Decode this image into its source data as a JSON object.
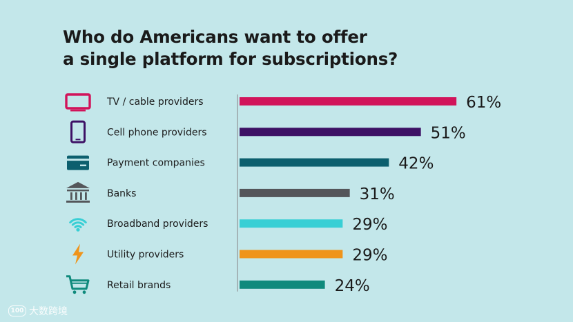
{
  "title": {
    "line1": "Who do Americans want to offer",
    "line2": "a single platform for subscriptions?"
  },
  "watermark": {
    "logo": "100",
    "text": "大数跨境"
  },
  "chart_data": {
    "type": "bar",
    "orientation": "horizontal",
    "title": "Who do Americans want to offer a single platform for subscriptions?",
    "categories": [
      "TV / cable providers",
      "Cell phone providers",
      "Payment companies",
      "Banks",
      "Broadband providers",
      "Utility providers",
      "Retail brands"
    ],
    "values": [
      61,
      51,
      42,
      31,
      29,
      29,
      24
    ],
    "value_labels": [
      "61%",
      "51%",
      "42%",
      "31%",
      "29%",
      "29%",
      "24%"
    ],
    "unit": "%",
    "icons": [
      "tv-icon",
      "cell-phone-icon",
      "credit-card-icon",
      "bank-icon",
      "wifi-icon",
      "lightning-bolt-icon",
      "shopping-cart-icon"
    ],
    "colors": [
      "#d1145a",
      "#3d1165",
      "#0c5f6e",
      "#54565a",
      "#38cfd5",
      "#ef941b",
      "#0f8a7c"
    ],
    "grid": false,
    "legend": "none"
  }
}
